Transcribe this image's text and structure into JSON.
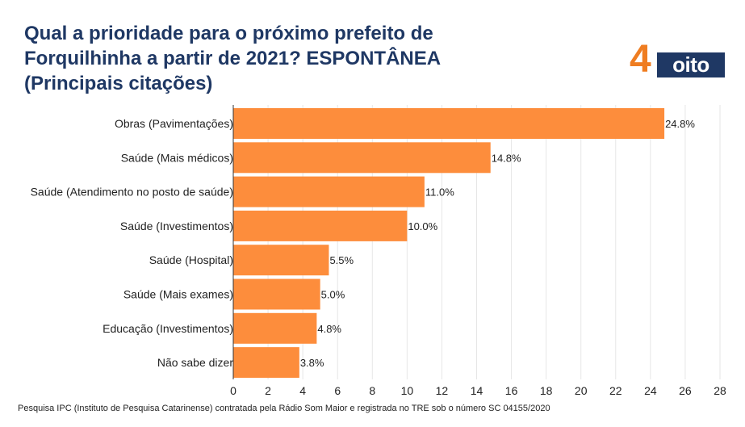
{
  "header": {
    "title_line1": "Qual a prioridade para o próximo prefeito de",
    "title_line2": "Forquilhinha a partir de 2021? ESPONTÂNEA",
    "title_line3": "(Principais citações)"
  },
  "logo": {
    "digit": "4",
    "word": "oito",
    "colors": {
      "orange": "#ef7d21",
      "navy": "#1f3864"
    }
  },
  "footer": {
    "text": "Pesquisa IPC (Instituto de Pesquisa Catarinense) contratada pela Rádio Som Maior e registrada no TRE sob o número SC 04155/2020"
  },
  "chart_data": {
    "type": "bar",
    "orientation": "horizontal",
    "categories": [
      "Obras (Pavimentações)",
      "Saúde (Mais médicos)",
      "Saúde (Atendimento no posto de saúde)",
      "Saúde (Investimentos)",
      "Saúde (Hospital)",
      "Saúde (Mais exames)",
      "Educação (Investimentos)",
      "Não sabe dizer"
    ],
    "values": [
      24.8,
      14.8,
      11.0,
      10.0,
      5.5,
      5.0,
      4.8,
      3.8
    ],
    "value_labels": [
      "24.8%",
      "14.8%",
      "11.0%",
      "10.0%",
      "5.5%",
      "5.0%",
      "4.8%",
      "3.8%"
    ],
    "xlim": [
      0,
      28
    ],
    "xticks": [
      0,
      2,
      4,
      6,
      8,
      10,
      12,
      14,
      16,
      18,
      20,
      22,
      24,
      26,
      28
    ],
    "grid": true,
    "colors": {
      "bar": "#fd8d3c",
      "text": "#222222",
      "grid": "#e6e6e6",
      "axis": "#333333"
    }
  }
}
